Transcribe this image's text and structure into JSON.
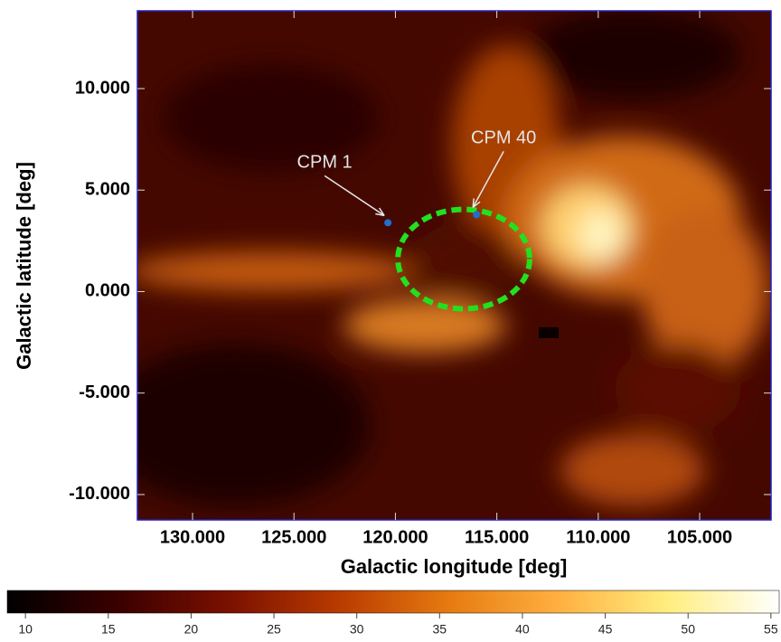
{
  "chart_data": {
    "type": "image",
    "x_label": "Galactic longitude [deg]",
    "y_label": "Galactic latitude [deg]",
    "xlim": [
      132.72,
      101.48
    ],
    "ylim": [
      -11.25,
      13.83
    ],
    "xticks": [
      {
        "value": 130,
        "label": "130.000"
      },
      {
        "value": 125,
        "label": "125.000"
      },
      {
        "value": 120,
        "label": "120.000"
      },
      {
        "value": 115,
        "label": "115.000"
      },
      {
        "value": 110,
        "label": "110.000"
      },
      {
        "value": 105,
        "label": "105.000"
      }
    ],
    "yticks": [
      {
        "value": 10,
        "label": "10.000"
      },
      {
        "value": 5,
        "label": "5.000"
      },
      {
        "value": 0,
        "label": "0.000"
      },
      {
        "value": -5,
        "label": "-5.000"
      },
      {
        "value": -10,
        "label": "-10.000"
      }
    ],
    "points": [
      {
        "name": "CPM 1",
        "x": 120.37,
        "y": 3.39,
        "color": "#1f6fd1"
      },
      {
        "name": "CPM 40",
        "x": 116.0,
        "y": 3.79,
        "color": "#1f6fd1"
      }
    ],
    "region": {
      "center": [
        116.63,
        1.6
      ],
      "radii": [
        3.25,
        2.45
      ],
      "color": "#22e01e"
    },
    "colorbar": {
      "lim": [
        8.9,
        55.5
      ],
      "ticks": [
        10,
        15,
        20,
        25,
        30,
        35,
        40,
        45,
        50,
        55
      ],
      "colors": [
        "#000000",
        "#3a0000",
        "#7a1000",
        "#b83a00",
        "#e67a10",
        "#ffb040",
        "#ffee80",
        "#ffffff"
      ]
    }
  }
}
